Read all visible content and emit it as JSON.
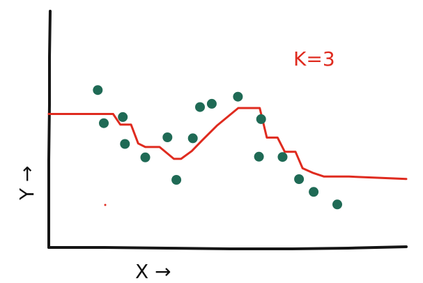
{
  "chart_data": {
    "type": "line",
    "title": "",
    "xlabel": "X →",
    "ylabel": "Y →",
    "annotation": "K=3",
    "colors": {
      "axes": "#151515",
      "points": "#1f6a55",
      "fit": "#df2b1f"
    },
    "xlim": [
      0,
      100
    ],
    "ylim": [
      0,
      100
    ],
    "grid": false,
    "legend": "none",
    "series": [
      {
        "type": "scatter",
        "x": [
          13.7,
          15.4,
          20.7,
          21.3,
          27.0,
          33.2,
          35.7,
          40.3,
          42.3,
          45.6,
          52.9,
          58.8,
          59.4,
          65.4,
          70.0,
          74.1,
          80.7
        ],
        "y": [
          66.6,
          52.6,
          55.2,
          43.8,
          38.1,
          46.6,
          28.6,
          46.2,
          59.4,
          60.8,
          63.8,
          38.4,
          54.3,
          38.3,
          28.9,
          23.5,
          18.2
        ]
      },
      {
        "type": "line",
        "x": [
          0,
          18,
          20,
          23,
          25,
          27,
          31,
          35,
          37,
          40,
          43,
          47,
          53,
          59,
          61,
          64,
          66,
          69,
          71,
          74,
          77,
          84,
          100
        ],
        "y": [
          56.5,
          56.5,
          52.0,
          52.0,
          44.0,
          42.5,
          42.5,
          37.5,
          37.5,
          40.8,
          45.5,
          51.5,
          59.0,
          59.0,
          46.5,
          46.5,
          40.5,
          40.5,
          33.5,
          31.5,
          30.0,
          30.0,
          29.0
        ]
      }
    ]
  }
}
